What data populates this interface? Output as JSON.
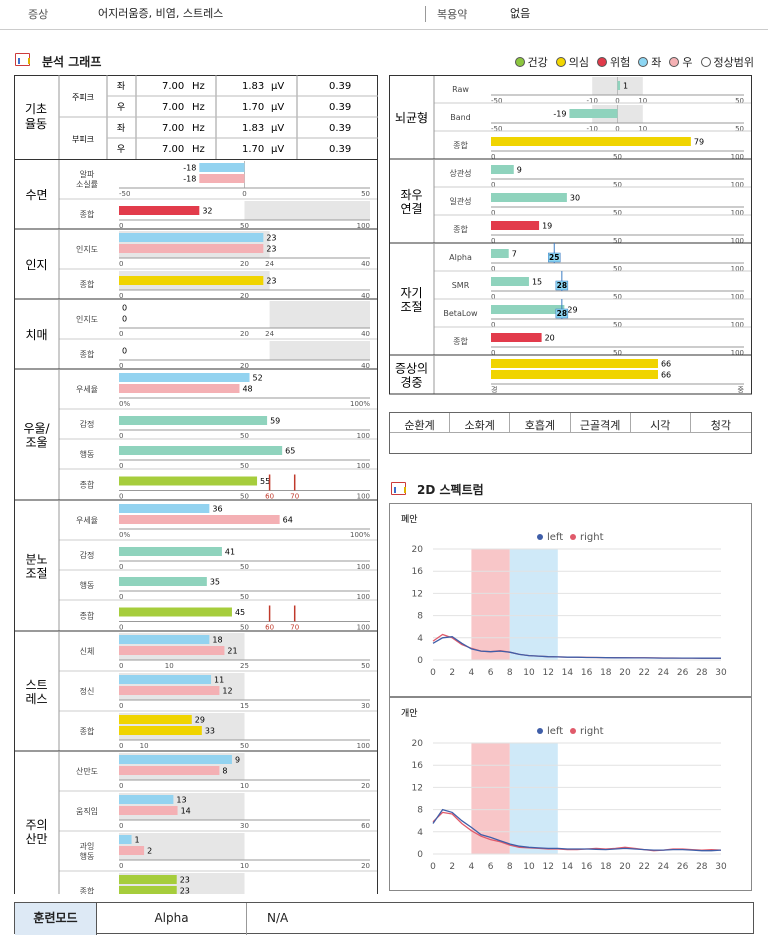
{
  "header": {
    "symptom_label": "증상",
    "symptom_value": "어지러움증, 비염, 스트레스",
    "meds_label": "복용약",
    "meds_value": "없음"
  },
  "analysis": {
    "title": "분석 그래프"
  },
  "legend": [
    {
      "label": "건강",
      "color": "#8cc63f"
    },
    {
      "label": "의심",
      "color": "#f2d600"
    },
    {
      "label": "위험",
      "color": "#e03a4a"
    },
    {
      "label": "좌",
      "color": "#8dd6f3"
    },
    {
      "label": "우",
      "color": "#f5b1b4"
    },
    {
      "label": "정상범위",
      "color": "#ffffff"
    }
  ],
  "colors": {
    "left": "#93d3f0",
    "right": "#f4b0b4",
    "green": "#8fd3bd",
    "yellow": "#f0d400",
    "red": "#e23b4b",
    "lime": "#a6cd3c",
    "band": "#e6e6e6"
  },
  "baseline": {
    "title": "기초 율동",
    "rows": [
      {
        "group": "주피크",
        "side": "좌",
        "hz": "7.00",
        "hz_unit": "Hz",
        "uv": "1.83",
        "uv_unit": "μV",
        "ratio": "0.39"
      },
      {
        "group": "주피크",
        "side": "우",
        "hz": "7.00",
        "hz_unit": "Hz",
        "uv": "1.70",
        "uv_unit": "μV",
        "ratio": "0.39"
      },
      {
        "group": "부피크",
        "side": "좌",
        "hz": "7.00",
        "hz_unit": "Hz",
        "uv": "1.83",
        "uv_unit": "μV",
        "ratio": "0.39"
      },
      {
        "group": "부피크",
        "side": "우",
        "hz": "7.00",
        "hz_unit": "Hz",
        "uv": "1.70",
        "uv_unit": "μV",
        "ratio": "0.39"
      }
    ]
  },
  "left_sections": [
    {
      "name": "수면",
      "rows": [
        {
          "label": "알파 소실률",
          "bars": [
            {
              "v": -18,
              "c": "left"
            },
            {
              "v": -18,
              "c": "right"
            }
          ],
          "min": -50,
          "max": 50,
          "ticks": [
            -50,
            0,
            50
          ],
          "band": null
        },
        {
          "label": "종합",
          "bars": [
            {
              "v": 32,
              "c": "red"
            }
          ],
          "min": 0,
          "max": 100,
          "ticks": [
            0,
            50,
            100
          ],
          "band": [
            50,
            100
          ]
        }
      ]
    },
    {
      "name": "인지",
      "rows": [
        {
          "label": "인지도",
          "bars": [
            {
              "v": 23,
              "c": "left"
            },
            {
              "v": 23,
              "c": "right"
            }
          ],
          "min": 0,
          "max": 40,
          "ticks": [
            0,
            20,
            24,
            40
          ],
          "band": [
            0,
            24
          ]
        },
        {
          "label": "종합",
          "bars": [
            {
              "v": 23,
              "c": "yellow"
            }
          ],
          "min": 0,
          "max": 40,
          "ticks": [
            0,
            20,
            40
          ],
          "band": [
            0,
            24
          ]
        }
      ]
    },
    {
      "name": "치매",
      "rows": [
        {
          "label": "인지도",
          "bars": [
            {
              "v": 0,
              "c": "left"
            },
            {
              "v": 0,
              "c": "right"
            }
          ],
          "min": 0,
          "max": 40,
          "ticks": [
            0,
            20,
            24,
            40
          ],
          "band": [
            24,
            40
          ]
        },
        {
          "label": "종합",
          "bars": [
            {
              "v": 0,
              "c": "yellow"
            }
          ],
          "min": 0,
          "max": 40,
          "ticks": [
            0,
            20,
            40
          ],
          "band": [
            24,
            40
          ]
        }
      ]
    },
    {
      "name": "우울/ 조울",
      "rows": [
        {
          "label": "우세율",
          "bars": [
            {
              "v": 52,
              "c": "left"
            },
            {
              "v": 48,
              "c": "right"
            }
          ],
          "min": 0,
          "max": 100,
          "ticks": [
            "0%",
            "100%"
          ],
          "band": null
        },
        {
          "label": "감정",
          "bars": [
            {
              "v": 59,
              "c": "green"
            }
          ],
          "min": 0,
          "max": 100,
          "ticks": [
            0,
            50,
            100
          ],
          "band": null
        },
        {
          "label": "행동",
          "bars": [
            {
              "v": 65,
              "c": "green"
            }
          ],
          "min": 0,
          "max": 100,
          "ticks": [
            0,
            50,
            100
          ],
          "band": null
        },
        {
          "label": "종합",
          "bars": [
            {
              "v": 55,
              "c": "lime"
            }
          ],
          "min": 0,
          "max": 100,
          "ticks": [
            0,
            50,
            60,
            70,
            100
          ],
          "band": null,
          "marks": [
            60,
            70
          ]
        }
      ]
    },
    {
      "name": "분노 조절",
      "rows": [
        {
          "label": "우세율",
          "bars": [
            {
              "v": 36,
              "c": "left"
            },
            {
              "v": 64,
              "c": "right"
            }
          ],
          "min": 0,
          "max": 100,
          "ticks": [
            "0%",
            "100%"
          ],
          "band": null
        },
        {
          "label": "감정",
          "bars": [
            {
              "v": 41,
              "c": "green"
            }
          ],
          "min": 0,
          "max": 100,
          "ticks": [
            0,
            50,
            100
          ],
          "band": null
        },
        {
          "label": "행동",
          "bars": [
            {
              "v": 35,
              "c": "green"
            }
          ],
          "min": 0,
          "max": 100,
          "ticks": [
            0,
            50,
            100
          ],
          "band": null
        },
        {
          "label": "종합",
          "bars": [
            {
              "v": 45,
              "c": "lime"
            }
          ],
          "min": 0,
          "max": 100,
          "ticks": [
            0,
            50,
            60,
            70,
            100
          ],
          "band": null,
          "marks": [
            60,
            70
          ]
        }
      ]
    },
    {
      "name": "스트 레스",
      "rows": [
        {
          "label": "신체",
          "bars": [
            {
              "v": 18,
              "c": "left"
            },
            {
              "v": 21,
              "c": "right"
            }
          ],
          "min": 0,
          "max": 50,
          "ticks": [
            0,
            10,
            25,
            50
          ],
          "band": [
            0,
            25
          ]
        },
        {
          "label": "정신",
          "bars": [
            {
              "v": 11,
              "c": "left"
            },
            {
              "v": 12,
              "c": "right"
            }
          ],
          "min": 0,
          "max": 30,
          "ticks": [
            0,
            15,
            30
          ],
          "band": [
            0,
            15
          ]
        },
        {
          "label": "종합",
          "bars": [
            {
              "v": 29,
              "c": "yellow"
            },
            {
              "v": 33,
              "c": "yellow"
            }
          ],
          "min": 0,
          "max": 100,
          "ticks": [
            0,
            10,
            50,
            100
          ],
          "band": [
            0,
            50
          ]
        }
      ]
    },
    {
      "name": "주의 산만",
      "rows": [
        {
          "label": "산만도",
          "bars": [
            {
              "v": 9,
              "c": "left"
            },
            {
              "v": 8,
              "c": "right"
            }
          ],
          "min": 0,
          "max": 20,
          "ticks": [
            0,
            10,
            20
          ],
          "band": [
            0,
            10
          ]
        },
        {
          "label": "움직임",
          "bars": [
            {
              "v": 13,
              "c": "left"
            },
            {
              "v": 14,
              "c": "right"
            }
          ],
          "min": 0,
          "max": 60,
          "ticks": [
            0,
            30,
            60
          ],
          "band": [
            0,
            30
          ]
        },
        {
          "label": "과잉 행동",
          "bars": [
            {
              "v": 1,
              "c": "left"
            },
            {
              "v": 2,
              "c": "right"
            }
          ],
          "min": 0,
          "max": 20,
          "ticks": [
            0,
            10,
            20
          ],
          "band": [
            0,
            10
          ]
        },
        {
          "label": "종합",
          "bars": [
            {
              "v": 23,
              "c": "lime"
            },
            {
              "v": 23,
              "c": "lime"
            }
          ],
          "min": 0,
          "max": 100,
          "ticks": [
            0,
            50,
            100
          ],
          "band": [
            0,
            50
          ]
        }
      ]
    }
  ],
  "right_sections": [
    {
      "name": "뇌균형",
      "rows": [
        {
          "label": "Raw",
          "bars": [
            {
              "v": 1,
              "c": "green"
            }
          ],
          "min": -50,
          "max": 50,
          "ticks": [
            -50,
            -10,
            0,
            10,
            50
          ],
          "band": [
            -10,
            10
          ]
        },
        {
          "label": "Band",
          "bars": [
            {
              "v": -19,
              "c": "green"
            }
          ],
          "min": -50,
          "max": 50,
          "ticks": [
            -50,
            -10,
            0,
            10,
            50
          ],
          "band": [
            -10,
            10
          ]
        },
        {
          "label": "종합",
          "bars": [
            {
              "v": 79,
              "c": "yellow"
            }
          ],
          "min": 0,
          "max": 100,
          "ticks": [
            0,
            50,
            100
          ],
          "band": null
        }
      ]
    },
    {
      "name": "좌우 연결",
      "rows": [
        {
          "label": "상관성",
          "bars": [
            {
              "v": 9,
              "c": "green"
            }
          ],
          "min": 0,
          "max": 100,
          "ticks": [
            0,
            50,
            100
          ],
          "band": null
        },
        {
          "label": "일관성",
          "bars": [
            {
              "v": 30,
              "c": "green"
            }
          ],
          "min": 0,
          "max": 100,
          "ticks": [
            0,
            50,
            100
          ],
          "band": null
        },
        {
          "label": "종합",
          "bars": [
            {
              "v": 19,
              "c": "red"
            }
          ],
          "min": 0,
          "max": 100,
          "ticks": [
            0,
            50,
            100
          ],
          "band": null
        }
      ]
    },
    {
      "name": "자기 조절",
      "rows": [
        {
          "label": "Alpha",
          "bars": [
            {
              "v": 7,
              "c": "green"
            }
          ],
          "min": 0,
          "max": 100,
          "ticks": [
            0,
            50,
            100
          ],
          "band": null,
          "badge": 25
        },
        {
          "label": "SMR",
          "bars": [
            {
              "v": 15,
              "c": "green"
            }
          ],
          "min": 0,
          "max": 100,
          "ticks": [
            0,
            50,
            100
          ],
          "band": null,
          "badge": 28
        },
        {
          "label": "BetaLow",
          "bars": [
            {
              "v": 29,
              "c": "green"
            }
          ],
          "min": 0,
          "max": 100,
          "ticks": [
            0,
            50,
            100
          ],
          "band": null,
          "badge": 28
        },
        {
          "label": "종합",
          "bars": [
            {
              "v": 20,
              "c": "red"
            }
          ],
          "min": 0,
          "max": 100,
          "ticks": [
            0,
            50,
            100
          ],
          "band": null
        }
      ]
    },
    {
      "name": "증상의 경중",
      "rows": [
        {
          "label": "",
          "bars": [
            {
              "v": 66,
              "c": "yellow"
            },
            {
              "v": 66,
              "c": "yellow"
            }
          ],
          "min": 0,
          "max": 100,
          "ticks": [
            "경",
            "중"
          ],
          "band": null
        }
      ]
    }
  ],
  "organs": [
    "순환계",
    "소화계",
    "호흡계",
    "근골격계",
    "시각",
    "청각"
  ],
  "spectrum": {
    "title": "2D 스펙트럼",
    "charts": [
      {
        "label": "폐안",
        "legend": [
          "left",
          "right"
        ],
        "x": [
          0,
          1,
          2,
          3,
          4,
          5,
          6,
          7,
          8,
          9,
          10,
          11,
          12,
          13,
          14,
          15,
          16,
          17,
          18,
          19,
          20,
          21,
          22,
          23,
          24,
          25,
          26,
          27,
          28,
          29,
          30
        ],
        "left": [
          3.0,
          4.0,
          4.2,
          3.0,
          2.0,
          1.6,
          1.5,
          1.6,
          1.4,
          1.0,
          0.8,
          0.7,
          0.6,
          0.55,
          0.5,
          0.5,
          0.45,
          0.45,
          0.42,
          0.4,
          0.4,
          0.38,
          0.38,
          0.36,
          0.35,
          0.35,
          0.34,
          0.34,
          0.33,
          0.33,
          0.32
        ],
        "right": [
          3.4,
          4.6,
          4.0,
          2.8,
          2.1,
          1.6,
          1.5,
          1.7,
          1.4,
          1.0,
          0.8,
          0.7,
          0.6,
          0.55,
          0.52,
          0.5,
          0.46,
          0.45,
          0.44,
          0.42,
          0.4,
          0.4,
          0.4,
          0.38,
          0.36,
          0.36,
          0.35,
          0.34,
          0.33,
          0.33,
          0.32
        ],
        "yticks": [
          0,
          4,
          8,
          12,
          16,
          20
        ],
        "xticks": [
          0,
          2,
          4,
          6,
          8,
          10,
          12,
          14,
          16,
          18,
          20,
          22,
          24,
          26,
          28,
          30
        ]
      },
      {
        "label": "개안",
        "legend": [
          "left",
          "right"
        ],
        "x": [
          0,
          1,
          2,
          3,
          4,
          5,
          6,
          7,
          8,
          9,
          10,
          11,
          12,
          13,
          14,
          15,
          16,
          17,
          18,
          19,
          20,
          21,
          22,
          23,
          24,
          25,
          26,
          27,
          28,
          29,
          30
        ],
        "left": [
          5.5,
          8.0,
          7.5,
          6.0,
          4.8,
          3.5,
          3.0,
          2.4,
          1.8,
          1.4,
          1.2,
          1.1,
          1.0,
          1.0,
          0.9,
          0.9,
          0.9,
          0.85,
          0.8,
          0.9,
          1.0,
          0.9,
          0.8,
          0.7,
          0.7,
          0.8,
          0.8,
          0.7,
          0.6,
          0.6,
          0.7
        ],
        "right": [
          5.8,
          7.5,
          7.2,
          5.5,
          4.2,
          3.2,
          2.6,
          2.2,
          1.6,
          1.2,
          1.1,
          1.0,
          0.9,
          0.9,
          0.8,
          0.8,
          0.9,
          1.0,
          0.9,
          1.0,
          1.2,
          1.0,
          0.8,
          0.6,
          0.7,
          0.9,
          0.9,
          0.8,
          0.7,
          0.8,
          0.7
        ],
        "yticks": [
          0,
          4,
          8,
          12,
          16,
          20
        ],
        "xticks": [
          0,
          2,
          4,
          6,
          8,
          10,
          12,
          14,
          16,
          18,
          20,
          22,
          24,
          26,
          28,
          30
        ]
      }
    ]
  },
  "training": {
    "label": "훈련모드",
    "value": "Alpha",
    "na": "N/A"
  }
}
